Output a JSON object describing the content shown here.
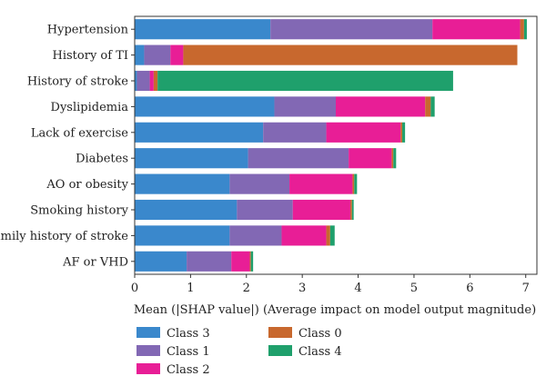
{
  "chart_data": {
    "type": "bar",
    "orientation": "horizontal",
    "stacked": true,
    "xlabel": "Mean (|SHAP value|) (Average impact on model output magnitude)",
    "ylabel": "",
    "xlim": [
      0,
      7.2
    ],
    "xticks": [
      0,
      1,
      2,
      3,
      4,
      5,
      6,
      7
    ],
    "grid": false,
    "legend_position": "bottom-left",
    "categories": [
      "Hypertension",
      "History of TI",
      "History of stroke",
      "Dyslipidemia",
      "Lack of exercise",
      "Diabetes",
      "AO or obesity",
      "Smoking history",
      "Family history of stroke",
      "AF or VHD"
    ],
    "series": [
      {
        "name": "Class 3",
        "color": "#3a88cc",
        "values": [
          2.43,
          0.17,
          0.04,
          2.5,
          2.3,
          2.03,
          1.7,
          1.83,
          1.7,
          0.93
        ]
      },
      {
        "name": "Class 1",
        "color": "#8268b4",
        "values": [
          2.9,
          0.47,
          0.23,
          1.1,
          1.13,
          1.8,
          1.07,
          1.0,
          0.93,
          0.8
        ]
      },
      {
        "name": "Class 2",
        "color": "#e81e96",
        "values": [
          1.57,
          0.23,
          0.07,
          1.6,
          1.33,
          0.77,
          1.13,
          1.03,
          0.8,
          0.33
        ]
      },
      {
        "name": "Class 0",
        "color": "#c8682e",
        "values": [
          0.07,
          5.98,
          0.07,
          0.1,
          0.03,
          0.03,
          0.03,
          0.03,
          0.07,
          0.02
        ]
      },
      {
        "name": "Class 4",
        "color": "#1fa06c",
        "values": [
          0.05,
          0.0,
          5.29,
          0.07,
          0.05,
          0.05,
          0.05,
          0.03,
          0.08,
          0.04
        ]
      }
    ],
    "legend_order": [
      "Class 3",
      "Class 1",
      "Class 2",
      "Class 0",
      "Class 4"
    ]
  }
}
